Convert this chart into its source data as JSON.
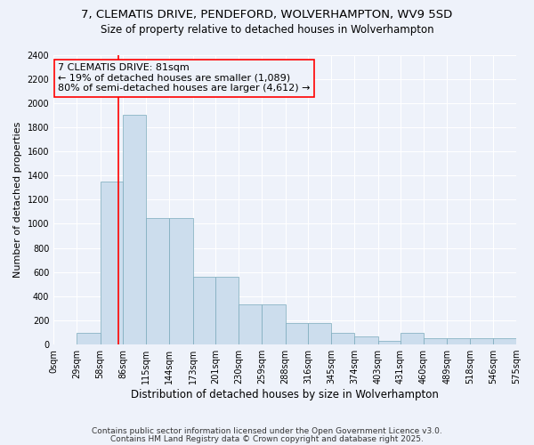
{
  "title_line1": "7, CLEMATIS DRIVE, PENDEFORD, WOLVERHAMPTON, WV9 5SD",
  "title_line2": "Size of property relative to detached houses in Wolverhampton",
  "xlabel": "Distribution of detached houses by size in Wolverhampton",
  "ylabel": "Number of detached properties",
  "bar_color": "#ccdded",
  "bar_edge_color": "#7aaabb",
  "background_color": "#eef2fa",
  "grid_color": "#ffffff",
  "red_line_x": 81,
  "annotation_text": "7 CLEMATIS DRIVE: 81sqm\n← 19% of detached houses are smaller (1,089)\n80% of semi-detached houses are larger (4,612) →",
  "bins": [
    0,
    29,
    58,
    86,
    115,
    144,
    173,
    201,
    230,
    259,
    288,
    316,
    345,
    374,
    403,
    431,
    460,
    489,
    518,
    546,
    575
  ],
  "values": [
    0,
    100,
    1350,
    1900,
    1050,
    1050,
    560,
    560,
    330,
    330,
    175,
    175,
    100,
    70,
    30,
    100,
    50,
    50,
    50,
    50
  ],
  "ylim": [
    0,
    2400
  ],
  "yticks": [
    0,
    200,
    400,
    600,
    800,
    1000,
    1200,
    1400,
    1600,
    1800,
    2000,
    2200,
    2400
  ],
  "xtick_labels": [
    "0sqm",
    "29sqm",
    "58sqm",
    "86sqm",
    "115sqm",
    "144sqm",
    "173sqm",
    "201sqm",
    "230sqm",
    "259sqm",
    "288sqm",
    "316sqm",
    "345sqm",
    "374sqm",
    "403sqm",
    "431sqm",
    "460sqm",
    "489sqm",
    "518sqm",
    "546sqm",
    "575sqm"
  ],
  "footnote_line1": "Contains HM Land Registry data © Crown copyright and database right 2025.",
  "footnote_line2": "Contains public sector information licensed under the Open Government Licence v3.0.",
  "title_fontsize": 9.5,
  "subtitle_fontsize": 8.5,
  "annot_fontsize": 8,
  "tick_fontsize": 7,
  "xlabel_fontsize": 8.5,
  "ylabel_fontsize": 8,
  "footnote_fontsize": 6.5
}
